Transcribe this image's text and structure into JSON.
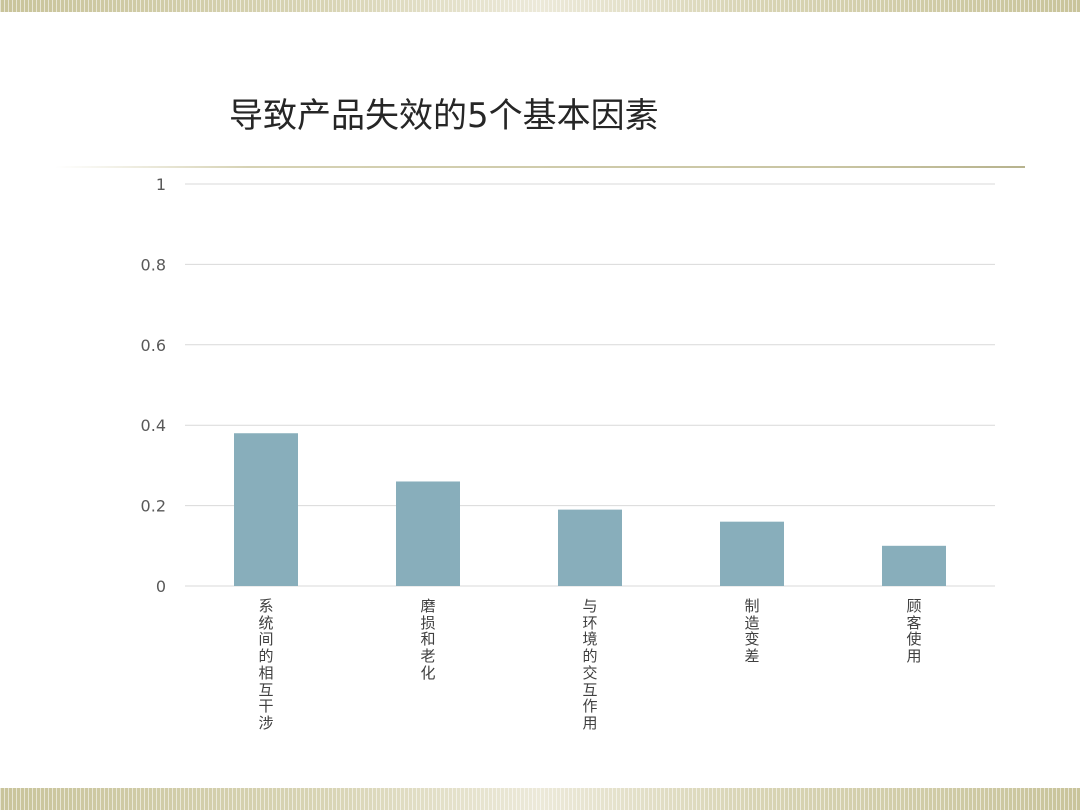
{
  "slide": {
    "title": "导致产品失效的5个基本因素"
  },
  "colors": {
    "bar": "#88aebb",
    "gridline": "#d9d9d9",
    "band": "#c9c49b"
  },
  "chart_data": {
    "type": "bar",
    "title": "",
    "xlabel": "",
    "ylabel": "",
    "categories": [
      "系统间的相互干涉",
      "磨损和老化",
      "与环境的交互作用",
      "制造变差",
      "顾客使用"
    ],
    "values": [
      0.38,
      0.26,
      0.19,
      0.16,
      0.1
    ],
    "ylim": [
      0,
      1
    ],
    "yticks": [
      "0",
      "0.2",
      "0.4",
      "0.6",
      "0.8",
      "1"
    ],
    "grid": true,
    "legend": "none"
  }
}
